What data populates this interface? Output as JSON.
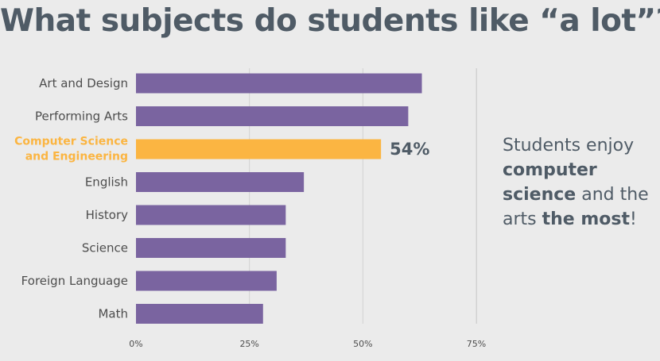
{
  "chart_data": {
    "type": "bar",
    "orientation": "horizontal",
    "title": "What subjects do students like “a lot”?",
    "categories": [
      [
        "Art and Design"
      ],
      [
        "Performing Arts"
      ],
      [
        "Computer Science",
        "and Engineering"
      ],
      [
        "English"
      ],
      [
        "History"
      ],
      [
        "Science"
      ],
      [
        "Foreign Language"
      ],
      [
        "Math"
      ]
    ],
    "values": [
      63,
      60,
      54,
      37,
      33,
      33,
      31,
      28
    ],
    "highlight_index": 2,
    "data_labels": [
      "",
      "",
      "54%",
      "",
      "",
      "",
      "",
      ""
    ],
    "xlim": [
      0,
      75
    ],
    "xticks": [
      0,
      25,
      50,
      75
    ],
    "xtick_labels": [
      "0%",
      "25%",
      "50%",
      "75%"
    ],
    "grid": true,
    "colors": {
      "bar": "#7a64a0",
      "highlight": "#fbb542",
      "grid": "#d2d2d2"
    }
  },
  "callout": {
    "parts": [
      {
        "text": "Students enjoy ",
        "bold": false
      },
      {
        "text": "computer science",
        "bold": true
      },
      {
        "text": " and the arts ",
        "bold": false
      },
      {
        "text": "the most",
        "bold": true
      },
      {
        "text": "!",
        "bold": false
      }
    ]
  }
}
